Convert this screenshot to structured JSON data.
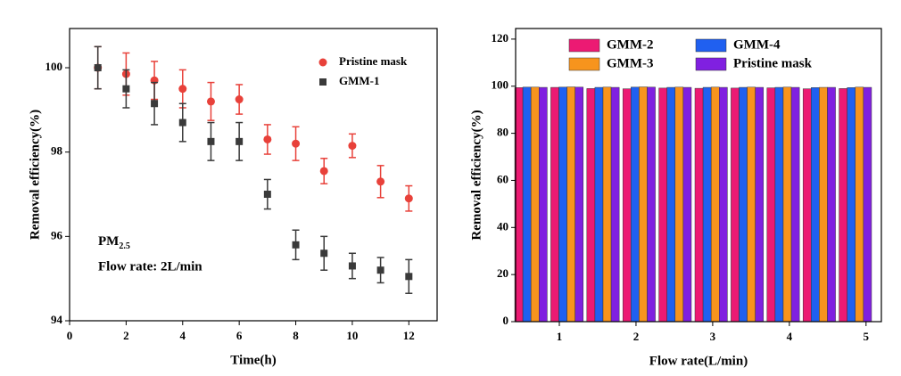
{
  "chart_data": [
    {
      "type": "scatter",
      "xlabel": "Time(h)",
      "ylabel": "Removal efficiency(%)",
      "xlim": [
        0,
        13.0
      ],
      "ylim": [
        94,
        100.93
      ],
      "xticks": [
        0,
        2,
        4,
        6,
        8,
        10,
        12
      ],
      "yticks": [
        94,
        96,
        98,
        100
      ],
      "legend": "upper right",
      "annotations": [
        {
          "text": "PM",
          "subscript": "2.5"
        },
        {
          "text": "Flow rate: 2L/min"
        }
      ],
      "x": [
        1,
        2,
        3,
        4,
        5,
        6,
        7,
        8,
        9,
        10,
        11,
        12
      ],
      "series": [
        {
          "name": "Pristine mask",
          "color": "#e8413a",
          "marker": "circle",
          "values": [
            100.0,
            99.85,
            99.7,
            99.5,
            99.2,
            99.25,
            98.3,
            98.2,
            97.55,
            98.15,
            97.3,
            96.9
          ],
          "errors": [
            0.5,
            0.5,
            0.45,
            0.45,
            0.45,
            0.35,
            0.35,
            0.4,
            0.3,
            0.28,
            0.38,
            0.3
          ]
        },
        {
          "name": "GMM-1",
          "color": "#3a3a3a",
          "marker": "square",
          "values": [
            100.0,
            99.5,
            99.15,
            98.7,
            98.25,
            98.25,
            97.0,
            95.8,
            95.6,
            95.3,
            95.2,
            95.05
          ],
          "errors": [
            0.5,
            0.45,
            0.5,
            0.45,
            0.45,
            0.45,
            0.35,
            0.35,
            0.4,
            0.3,
            0.3,
            0.4
          ]
        }
      ]
    },
    {
      "type": "bar",
      "xlabel": "Flow rate(L/min)",
      "ylabel": "Removal efficiency(%)",
      "xlim": [
        0.43,
        5.2
      ],
      "ylim": [
        0,
        124.5
      ],
      "xticks": [
        1,
        2,
        3,
        4,
        5
      ],
      "yticks": [
        0,
        20,
        40,
        60,
        80,
        100,
        120
      ],
      "legend": "upper center",
      "x": [
        0.63,
        1.1,
        1.57,
        2.04,
        2.51,
        2.98,
        3.45,
        3.92,
        4.39,
        4.86
      ],
      "series": [
        {
          "name": "GMM-2",
          "color": "#ec1a73",
          "values": [
            99.4,
            99.5,
            99.0,
            98.9,
            99.2,
            99.1,
            99.2,
            99.3,
            98.9,
            99.0
          ]
        },
        {
          "name": "GMM-4",
          "color": "#2060f0",
          "values": [
            99.6,
            99.6,
            99.5,
            99.6,
            99.5,
            99.5,
            99.5,
            99.5,
            99.4,
            99.4
          ]
        },
        {
          "name": "GMM-3",
          "color": "#f7941d",
          "values": [
            99.6,
            99.7,
            99.6,
            99.7,
            99.6,
            99.6,
            99.6,
            99.6,
            99.5,
            99.6
          ]
        },
        {
          "name": "Pristine mask",
          "color": "#8020e0",
          "values": [
            99.5,
            99.6,
            99.5,
            99.6,
            99.5,
            99.5,
            99.5,
            99.5,
            99.5,
            99.5
          ]
        }
      ]
    }
  ]
}
